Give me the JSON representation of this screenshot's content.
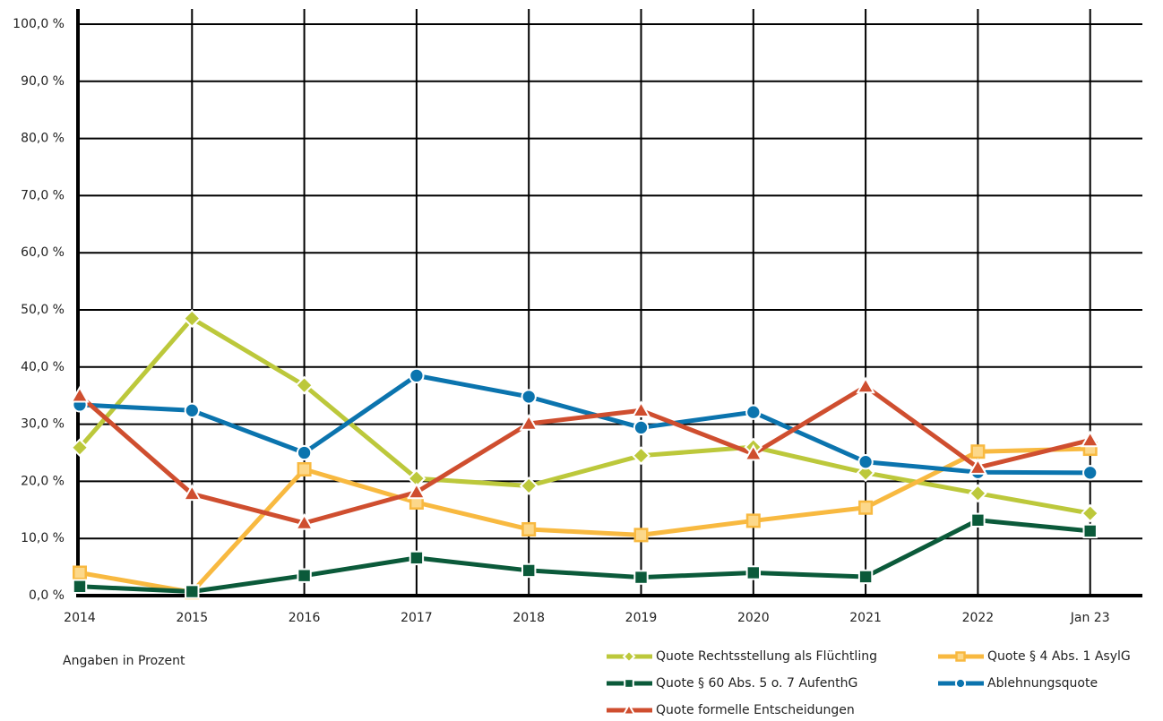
{
  "chart_data": {
    "type": "line",
    "annotation": "Angaben in Prozent",
    "categories": [
      "2014",
      "2015",
      "2016",
      "2017",
      "2018",
      "2019",
      "2020",
      "2021",
      "2022",
      "Jan 23"
    ],
    "series": [
      {
        "name": "Quote Rechtsstellung als Flüchtling",
        "color": "#bcc83b",
        "marker": "diamond",
        "values": [
          25.9,
          48.5,
          36.8,
          20.5,
          19.2,
          24.5,
          26.0,
          21.5,
          17.9,
          14.4
        ]
      },
      {
        "name": "Quote § 4 Abs. 1 AsylG",
        "color": "#f8b940",
        "marker": "square-open",
        "values": [
          4.0,
          0.6,
          22.1,
          16.3,
          11.6,
          10.6,
          13.1,
          15.4,
          25.2,
          25.7
        ]
      },
      {
        "name": "Quote § 60 Abs. 5 o. 7 AufenthG",
        "color": "#0b5a3a",
        "marker": "square",
        "values": [
          1.6,
          0.7,
          3.5,
          6.6,
          4.4,
          3.2,
          4.0,
          3.3,
          13.2,
          11.3
        ]
      },
      {
        "name": "Ablehnungsquote",
        "color": "#0b74ae",
        "marker": "circle",
        "values": [
          33.4,
          32.4,
          25.0,
          38.5,
          34.8,
          29.4,
          32.1,
          23.4,
          21.6,
          21.5
        ]
      },
      {
        "name": "Quote formelle Entscheidungen",
        "color": "#cf4e2f",
        "marker": "triangle",
        "values": [
          35.0,
          17.8,
          12.7,
          18.1,
          30.1,
          32.4,
          24.8,
          36.6,
          22.4,
          27.2
        ]
      }
    ],
    "ylim": [
      0,
      100
    ],
    "yticks": [
      {
        "value": 0,
        "label": "0,0 %"
      },
      {
        "value": 10,
        "label": "10,0 %"
      },
      {
        "value": 20,
        "label": "20,0 %"
      },
      {
        "value": 30,
        "label": "30,0 %"
      },
      {
        "value": 40,
        "label": "40,0 %"
      },
      {
        "value": 50,
        "label": "50,0 %"
      },
      {
        "value": 60,
        "label": "60,0 %"
      },
      {
        "value": 70,
        "label": "70,0 %"
      },
      {
        "value": 80,
        "label": "80,0 %"
      },
      {
        "value": 90,
        "label": "90,0 %"
      },
      {
        "value": 100,
        "label": "100,0 %"
      }
    ],
    "grid": true,
    "legend": "bottom-right"
  }
}
